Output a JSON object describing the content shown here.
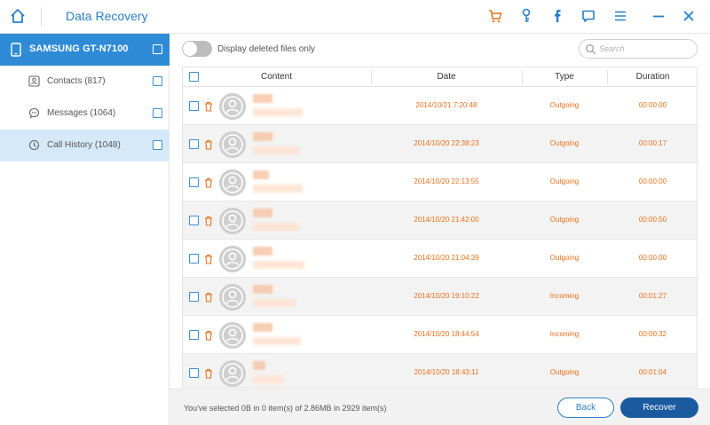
{
  "app": {
    "title": "Data Recovery"
  },
  "toolbar_icons": [
    "cart-icon",
    "key-icon",
    "facebook-icon",
    "chat-icon",
    "menu-icon",
    "minimize-icon",
    "close-icon"
  ],
  "colors": {
    "accent": "#2f8bd6",
    "highlight": "#e8701a",
    "active_row": "#d6e9f8",
    "primary_button": "#1c5aa0"
  },
  "sidebar": {
    "device": "SAMSUNG GT-N7100",
    "items": [
      {
        "label": "Contacts (817)",
        "icon": "contacts-icon",
        "active": false
      },
      {
        "label": "Messages (1064)",
        "icon": "messages-icon",
        "active": false
      },
      {
        "label": "Call History (1048)",
        "icon": "clock-icon",
        "active": true
      }
    ]
  },
  "filter": {
    "toggle_label": "Display deleted files only",
    "enabled": false
  },
  "search": {
    "placeholder": "Search"
  },
  "table": {
    "headers": {
      "content": "Content",
      "date": "Date",
      "type": "Type",
      "duration": "Duration"
    },
    "rows": [
      {
        "date": "2014/10/21 7:20:48",
        "type": "Outgoing",
        "duration": "00:00:00"
      },
      {
        "date": "2014/10/20 22:38:23",
        "type": "Outgoing",
        "duration": "00:00:17"
      },
      {
        "date": "2014/10/20 22:13:55",
        "type": "Outgoing",
        "duration": "00:00:00"
      },
      {
        "date": "2014/10/20 21:42:00",
        "type": "Outgoing",
        "duration": "00:00:50"
      },
      {
        "date": "2014/10/20 21:04:39",
        "type": "Outgoing",
        "duration": "00:00:00"
      },
      {
        "date": "2014/10/20 19:10:22",
        "type": "Incoming",
        "duration": "00:01:27"
      },
      {
        "date": "2014/10/20 18:44:54",
        "type": "Incoming",
        "duration": "00:00:32"
      },
      {
        "date": "2014/10/20 18:43:11",
        "type": "Outgoing",
        "duration": "00:01:04"
      }
    ]
  },
  "footer": {
    "status": "You've selected 0B in 0 item(s) of 2.86MB in 2929 item(s)",
    "back_label": "Back",
    "recover_label": "Recover"
  }
}
